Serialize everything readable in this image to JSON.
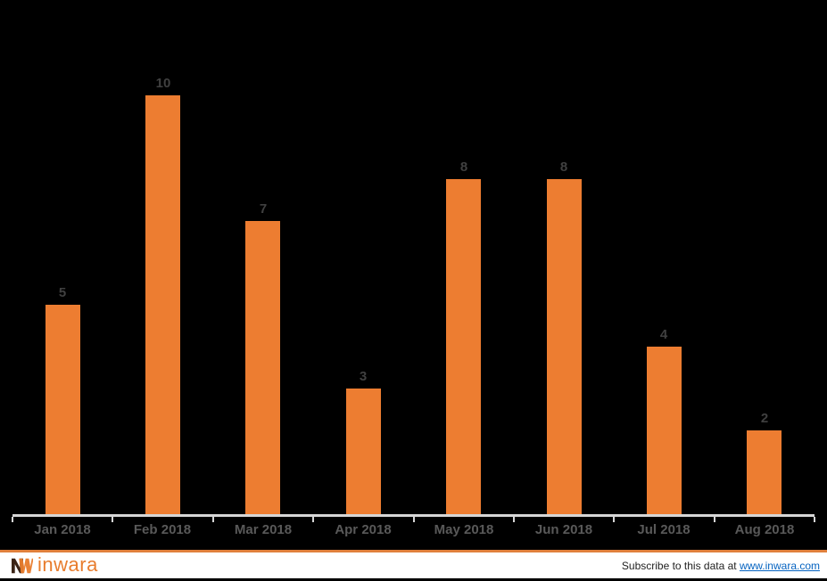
{
  "chart_data": {
    "type": "bar",
    "categories": [
      "Jan 2018",
      "Feb 2018",
      "Mar 2018",
      "Apr 2018",
      "May 2018",
      "Jun 2018",
      "Jul 2018",
      "Aug 2018"
    ],
    "values": [
      5,
      10,
      7,
      3,
      8,
      8,
      4,
      2
    ],
    "title": "",
    "xlabel": "",
    "ylabel": "",
    "ylim": [
      0,
      10
    ],
    "grid": false,
    "legend_position": "none",
    "data_labels": [
      "5",
      "10",
      "7",
      "3",
      "8",
      "8",
      "4",
      "2"
    ],
    "colors": {
      "background": "#000000",
      "bar": "#ED7D31",
      "data_label": "#404040",
      "axis_label": "#595959",
      "axis_line": "#D6D6D6"
    }
  },
  "footer": {
    "logo_text": "inwara",
    "subscribe_prefix": "Subscribe to this data at ",
    "link_text": "www.inwara.com",
    "accent_color": "#E0803C",
    "link_color": "#0563C1",
    "logo_color": "#E87D2E",
    "logo_icon": "inwara-monogram-icon"
  }
}
